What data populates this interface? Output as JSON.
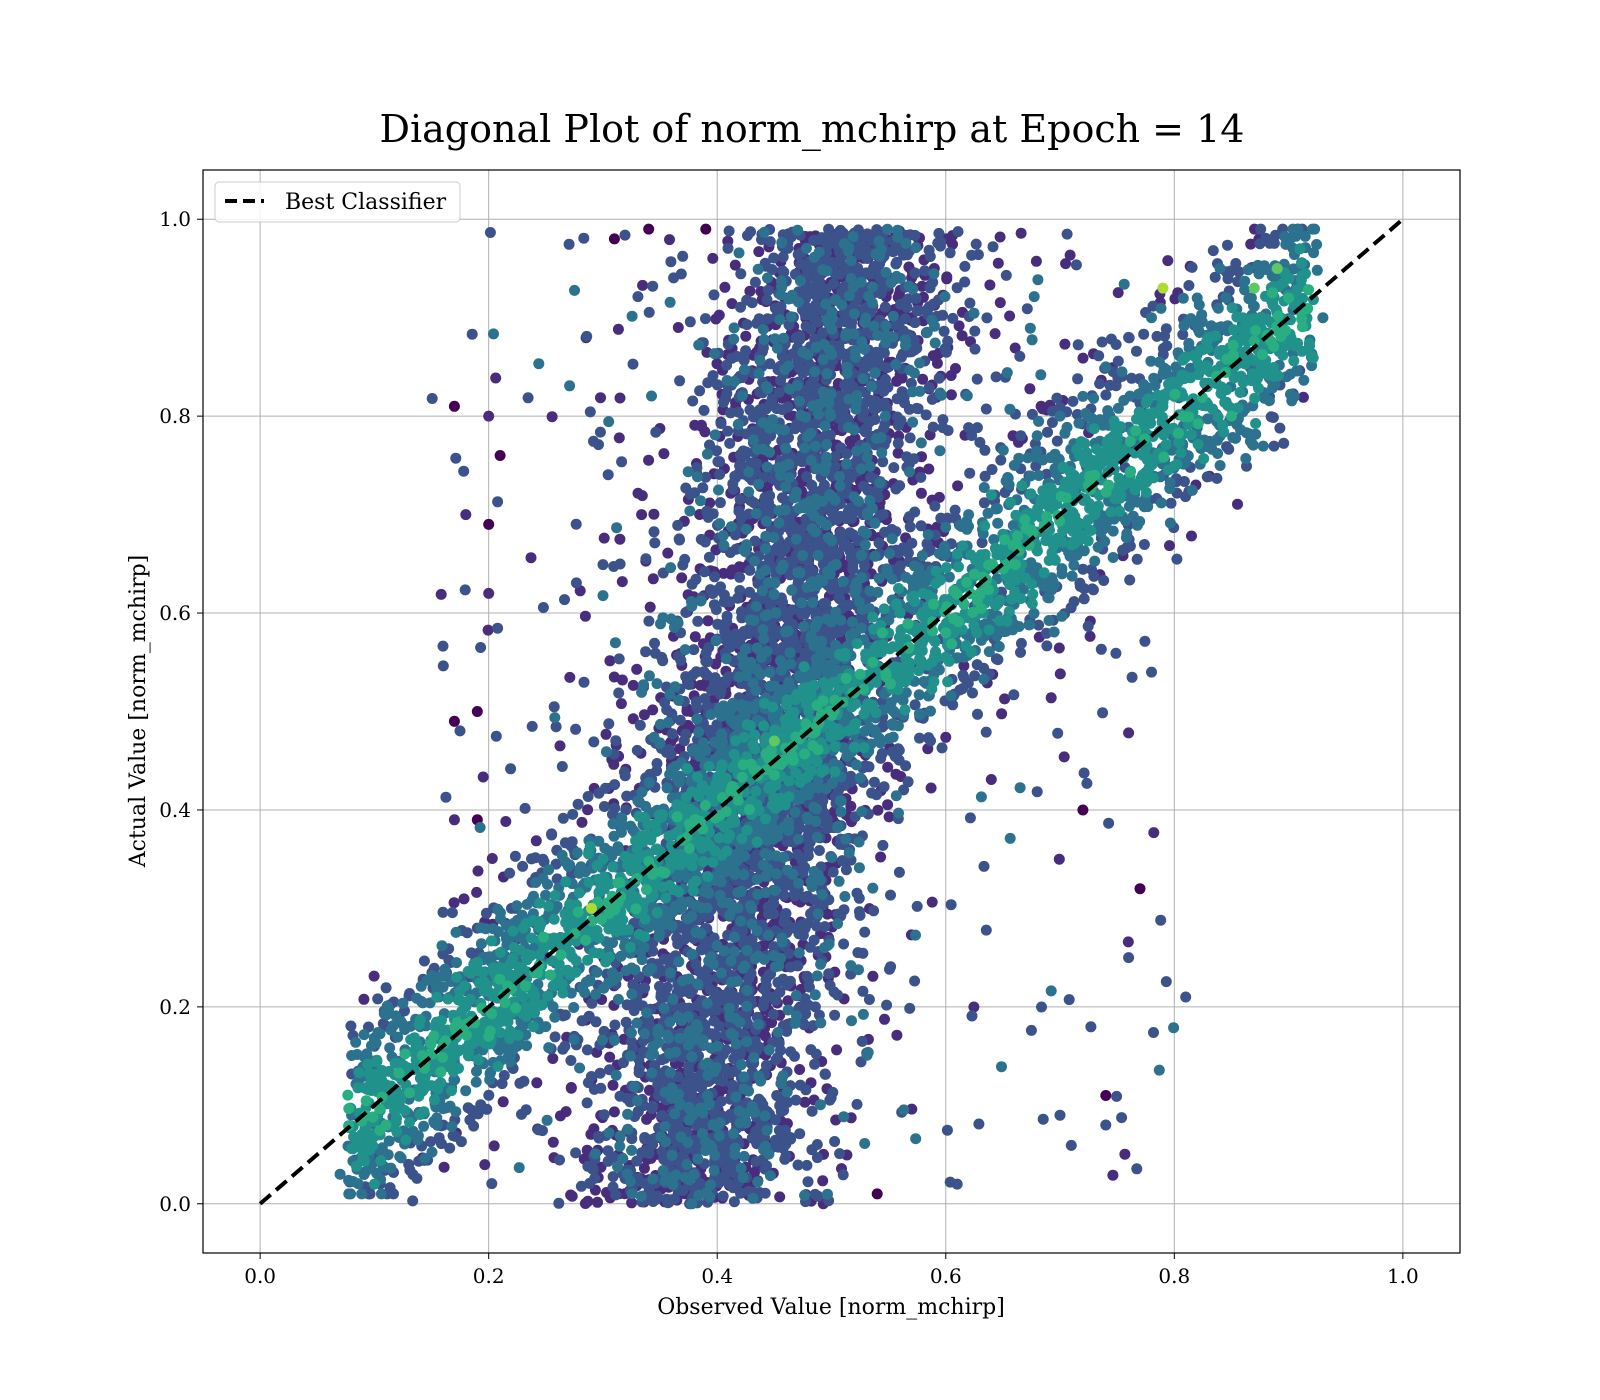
{
  "chart_data": {
    "type": "scatter",
    "title": "Diagonal Plot of norm_mchirp at Epoch = 14",
    "xlabel": "Observed Value [norm_mchirp]",
    "ylabel": "Actual Value [norm_mchirp]",
    "xlim": [
      -0.05,
      1.05
    ],
    "ylim": [
      -0.05,
      1.05
    ],
    "xticks": [
      0.0,
      0.2,
      0.4,
      0.6,
      0.8,
      1.0
    ],
    "yticks": [
      0.0,
      0.2,
      0.4,
      0.6,
      0.8,
      1.0
    ],
    "xtick_labels": [
      "0.0",
      "0.2",
      "0.4",
      "0.6",
      "0.8",
      "1.0"
    ],
    "ytick_labels": [
      "0.0",
      "0.2",
      "0.4",
      "0.6",
      "0.8",
      "1.0"
    ],
    "grid": true,
    "legend_position": "top-left",
    "colormap": "viridis",
    "colors": {
      "grid": "#b0b0b0",
      "line": "#000000",
      "viridis": [
        "#440154",
        "#472d7b",
        "#3b528b",
        "#2c728e",
        "#21918c",
        "#28ae80",
        "#5ec962",
        "#addc30",
        "#fde725"
      ]
    },
    "series": [
      {
        "name": "Best Classifier",
        "kind": "line",
        "style": "dashed",
        "color": "#000000",
        "x": [
          0.0,
          1.0
        ],
        "y": [
          0.0,
          1.0
        ]
      },
      {
        "kind": "scatter",
        "colormap": "viridis",
        "points": [
          [
            0.1,
            0.02,
            0.5
          ],
          [
            0.07,
            0.03,
            0.4
          ],
          [
            0.09,
            0.05,
            0.55
          ],
          [
            0.11,
            0.08,
            0.6
          ],
          [
            0.12,
            0.1,
            0.45
          ],
          [
            0.08,
            0.09,
            0.35
          ],
          [
            0.13,
            0.04,
            0.3
          ],
          [
            0.15,
            0.12,
            0.5
          ],
          [
            0.1,
            0.16,
            0.3
          ],
          [
            0.14,
            0.18,
            0.4
          ],
          [
            0.17,
            0.15,
            0.55
          ],
          [
            0.18,
            0.2,
            0.5
          ],
          [
            0.16,
            0.22,
            0.35
          ],
          [
            0.2,
            0.17,
            0.6
          ],
          [
            0.21,
            0.24,
            0.45
          ],
          [
            0.19,
            0.28,
            0.3
          ],
          [
            0.23,
            0.21,
            0.55
          ],
          [
            0.24,
            0.26,
            0.4
          ],
          [
            0.22,
            0.3,
            0.3
          ],
          [
            0.25,
            0.18,
            0.35
          ],
          [
            0.27,
            0.28,
            0.5
          ],
          [
            0.29,
            0.3,
            0.85
          ],
          [
            0.26,
            0.33,
            0.3
          ],
          [
            0.28,
            0.22,
            0.25
          ],
          [
            0.3,
            0.35,
            0.45
          ],
          [
            0.31,
            0.28,
            0.3
          ],
          [
            0.33,
            0.36,
            0.55
          ],
          [
            0.32,
            0.4,
            0.2
          ],
          [
            0.34,
            0.3,
            0.25
          ],
          [
            0.35,
            0.38,
            0.4
          ],
          [
            0.36,
            0.45,
            0.15
          ],
          [
            0.37,
            0.33,
            0.2
          ],
          [
            0.38,
            0.42,
            0.35
          ],
          [
            0.39,
            0.5,
            0.1
          ],
          [
            0.4,
            0.37,
            0.2
          ],
          [
            0.41,
            0.44,
            0.3
          ],
          [
            0.42,
            0.55,
            0.1
          ],
          [
            0.43,
            0.47,
            0.25
          ],
          [
            0.44,
            0.6,
            0.08
          ],
          [
            0.45,
            0.47,
            0.7
          ],
          [
            0.46,
            0.52,
            0.3
          ],
          [
            0.47,
            0.65,
            0.08
          ],
          [
            0.48,
            0.5,
            0.45
          ],
          [
            0.49,
            0.7,
            0.05
          ],
          [
            0.5,
            0.54,
            0.4
          ],
          [
            0.51,
            0.75,
            0.05
          ],
          [
            0.52,
            0.58,
            0.35
          ],
          [
            0.53,
            0.8,
            0.06
          ],
          [
            0.54,
            0.56,
            0.45
          ],
          [
            0.55,
            0.85,
            0.08
          ],
          [
            0.56,
            0.6,
            0.5
          ],
          [
            0.57,
            0.9,
            0.1
          ],
          [
            0.58,
            0.62,
            0.45
          ],
          [
            0.59,
            0.95,
            0.1
          ],
          [
            0.6,
            0.58,
            0.65
          ],
          [
            0.61,
            0.66,
            0.5
          ],
          [
            0.62,
            0.7,
            0.4
          ],
          [
            0.63,
            0.64,
            0.55
          ],
          [
            0.64,
            0.72,
            0.45
          ],
          [
            0.65,
            0.68,
            0.5
          ],
          [
            0.66,
            0.75,
            0.4
          ],
          [
            0.67,
            0.7,
            0.55
          ],
          [
            0.68,
            0.78,
            0.35
          ],
          [
            0.69,
            0.72,
            0.45
          ],
          [
            0.7,
            0.8,
            0.4
          ],
          [
            0.71,
            0.74,
            0.55
          ],
          [
            0.72,
            0.82,
            0.35
          ],
          [
            0.73,
            0.7,
            0.45
          ],
          [
            0.74,
            0.85,
            0.4
          ],
          [
            0.75,
            0.78,
            0.5
          ],
          [
            0.76,
            0.88,
            0.3
          ],
          [
            0.77,
            0.8,
            0.45
          ],
          [
            0.78,
            0.9,
            0.35
          ],
          [
            0.79,
            0.93,
            0.9
          ],
          [
            0.8,
            0.82,
            0.5
          ],
          [
            0.81,
            0.86,
            0.45
          ],
          [
            0.82,
            0.92,
            0.4
          ],
          [
            0.83,
            0.88,
            0.5
          ],
          [
            0.84,
            0.95,
            0.35
          ],
          [
            0.85,
            0.8,
            0.6
          ],
          [
            0.86,
            0.9,
            0.55
          ],
          [
            0.87,
            0.93,
            0.7
          ],
          [
            0.88,
            0.85,
            0.5
          ],
          [
            0.89,
            0.95,
            0.75
          ],
          [
            0.9,
            0.92,
            0.6
          ],
          [
            0.91,
            0.97,
            0.45
          ],
          [
            0.92,
            0.86,
            0.4
          ],
          [
            0.93,
            0.9,
            0.35
          ],
          [
            0.81,
            0.21,
            0.25
          ],
          [
            0.7,
            0.09,
            0.2
          ],
          [
            0.74,
            0.11,
            0.05
          ],
          [
            0.77,
            0.32,
            0.05
          ],
          [
            0.78,
            0.54,
            0.2
          ],
          [
            0.74,
            0.08,
            0.25
          ],
          [
            0.61,
            0.02,
            0.3
          ],
          [
            0.54,
            0.01,
            0.05
          ],
          [
            0.31,
            0.98,
            0.05
          ],
          [
            0.34,
            0.99,
            0.05
          ],
          [
            0.39,
            0.99,
            0.05
          ],
          [
            0.6,
            0.98,
            0.1
          ],
          [
            0.17,
            0.81,
            0.05
          ],
          [
            0.2,
            0.8,
            0.1
          ],
          [
            0.21,
            0.76,
            0.05
          ],
          [
            0.18,
            0.7,
            0.1
          ],
          [
            0.2,
            0.69,
            0.05
          ],
          [
            0.2,
            0.62,
            0.15
          ],
          [
            0.17,
            0.49,
            0.05
          ],
          [
            0.19,
            0.5,
            0.05
          ],
          [
            0.17,
            0.39,
            0.1
          ],
          [
            0.19,
            0.39,
            0.05
          ],
          [
            0.72,
            0.4,
            0.05
          ],
          [
            0.76,
            0.25,
            0.3
          ]
        ]
      }
    ]
  }
}
